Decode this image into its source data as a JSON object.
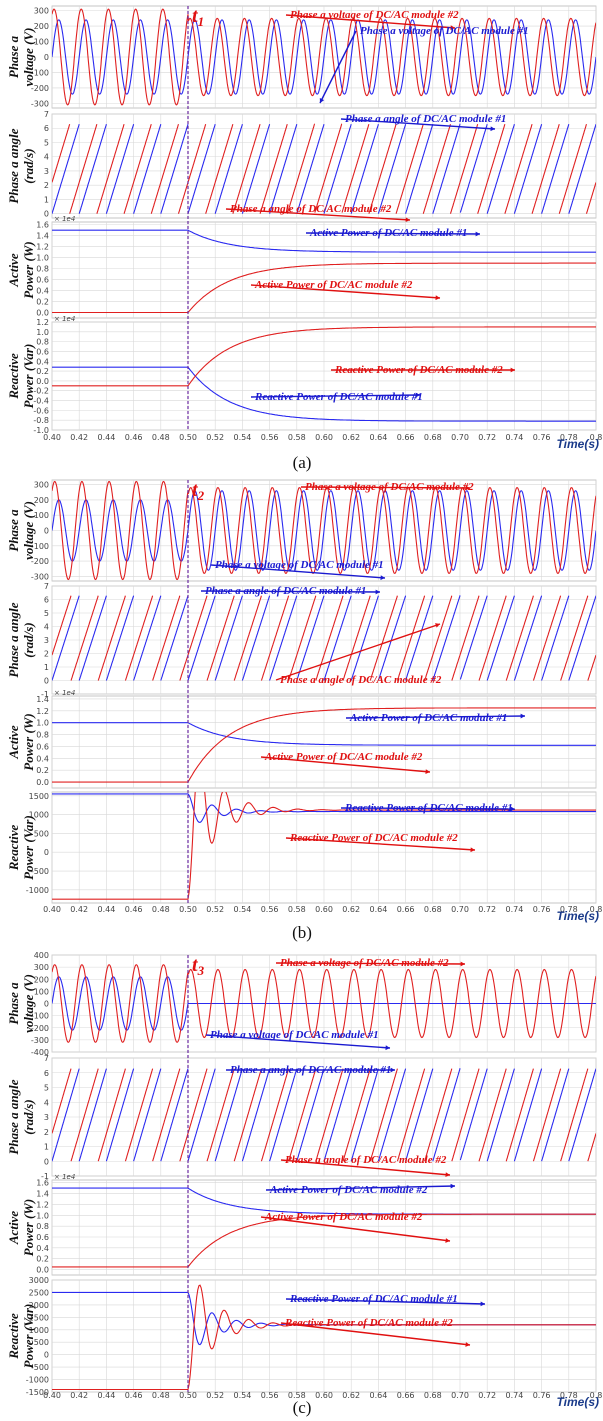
{
  "colors": {
    "module1": "#2a2af0",
    "module2": "#e02020",
    "annotation_red": "#e01010",
    "annotation_blue": "#1a1ad0",
    "grid": "#d8d8d8",
    "event_line": "#6a2aa0"
  },
  "x_axis": {
    "range": [
      0.4,
      0.8
    ],
    "ticks": [
      "0.40",
      "0.42",
      "0.44",
      "0.46",
      "0.48",
      "0.50",
      "0.52",
      "0.54",
      "0.56",
      "0.58",
      "0.60",
      "0.62",
      "0.64",
      "0.66",
      "0.68",
      "0.70",
      "0.72",
      "0.74",
      "0.76",
      "0.78",
      "0.8"
    ],
    "title": "Time(s)"
  },
  "chart_data": [
    {
      "group": "a",
      "caption": "(a)",
      "event_label": "t",
      "event_subscript": "1",
      "event_time": 0.5,
      "panels": [
        {
          "kind": "voltage",
          "type": "line",
          "ylabel_lines": [
            "Phase a",
            "voltage (V)"
          ],
          "yticks": [
            "300",
            "200",
            "100",
            "0",
            "-100",
            "-200",
            "-300"
          ],
          "ylim": [
            -330,
            330
          ],
          "exponent": "",
          "series": [
            {
              "name": "Phase a voltage of DC/AC module #1",
              "amplitude": 240,
              "amplitude_after": 240,
              "freq": 50,
              "phase": 0.0
            },
            {
              "name": "Phase a voltage of DC/AC module #2",
              "amplitude": 310,
              "amplitude_after": 250,
              "freq": 50,
              "phase": 0.35
            }
          ],
          "annotations": [
            {
              "text": "Phase a voltage of DC/AC module #2",
              "color": "module2"
            },
            {
              "text": "Phase a voltage of DC/AC module #1",
              "color": "module1"
            }
          ]
        },
        {
          "kind": "angle",
          "type": "line",
          "ylabel_lines": [
            "Phase a angle",
            "(rad/s)"
          ],
          "yticks": [
            "7",
            "6",
            "5",
            "4",
            "3",
            "2",
            "1",
            "0"
          ],
          "ylim": [
            -0.3,
            7
          ],
          "exponent": "",
          "series": [
            {
              "name": "Phase a angle of DC/AC module #1",
              "freq": 50,
              "phase": 0.0
            },
            {
              "name": "Phase a angle of DC/AC module #2",
              "freq": 50,
              "phase": 0.35
            }
          ],
          "annotations": [
            {
              "text": "Phase a angle of DC/AC module #1",
              "color": "module1"
            },
            {
              "text": "Phase a angle of DC/AC module #2",
              "color": "module2"
            }
          ]
        },
        {
          "kind": "power",
          "type": "line",
          "ylabel_lines": [
            "Active",
            "Power (W)"
          ],
          "yticks": [
            "1.6",
            "1.4",
            "1.2",
            "1.0",
            "0.8",
            "0.6",
            "0.4",
            "0.2",
            "0.0"
          ],
          "ylim": [
            -0.1,
            1.65
          ],
          "exponent": "× 1e4",
          "series": [
            {
              "name": "Active Power of DC/AC module #1",
              "before": 1.5,
              "after": 1.1
            },
            {
              "name": "Active Power of DC/AC module #2",
              "before": 0.0,
              "after": 0.9
            }
          ],
          "annotations": [
            {
              "text": "Active Power of DC/AC module #1",
              "color": "module1"
            },
            {
              "text": "Active Power of DC/AC module #2",
              "color": "module2"
            }
          ]
        },
        {
          "kind": "power",
          "type": "line",
          "ylabel_lines": [
            "Reactive",
            "Power (Var)"
          ],
          "yticks": [
            "1.2",
            "1.0",
            "0.8",
            "0.6",
            "0.4",
            "0.2",
            "0.0",
            "-0.2",
            "-0.4",
            "-0.6",
            "-0.8",
            "-1.0"
          ],
          "ylim": [
            -1.0,
            1.2
          ],
          "exponent": "× 1e4",
          "series": [
            {
              "name": "Reactive Power of DC/AC module #1",
              "before": 0.28,
              "after": -0.82
            },
            {
              "name": "Reactive Power of DC/AC module #2",
              "before": -0.1,
              "after": 1.1
            }
          ],
          "annotations": [
            {
              "text": "Reactive Power of DC/AC module #2",
              "color": "module2"
            },
            {
              "text": "Reactive Power of DC/AC module #1",
              "color": "module1"
            }
          ]
        }
      ]
    },
    {
      "group": "b",
      "caption": "(b)",
      "event_label": "t",
      "event_subscript": "2",
      "event_time": 0.5,
      "panels": [
        {
          "kind": "voltage",
          "type": "line",
          "ylabel_lines": [
            "Phase a",
            "voltage (V)"
          ],
          "yticks": [
            "300",
            "200",
            "100",
            "0",
            "-100",
            "-200",
            "-300"
          ],
          "ylim": [
            -330,
            330
          ],
          "exponent": "",
          "series": [
            {
              "name": "Phase a voltage of DC/AC module #1",
              "amplitude": 200,
              "amplitude_after": 260,
              "freq": 50,
              "phase": 0.0
            },
            {
              "name": "Phase a voltage of DC/AC module #2",
              "amplitude": 320,
              "amplitude_after": 280,
              "freq": 50,
              "phase": 0.3
            }
          ],
          "annotations": [
            {
              "text": "Phase a voltage of DC/AC module #2",
              "color": "module2"
            },
            {
              "text": "Phase a voltage of DC/AC module #1",
              "color": "module1"
            }
          ]
        },
        {
          "kind": "angle",
          "type": "line",
          "ylabel_lines": [
            "Phase a angle",
            "(rad/s)"
          ],
          "yticks": [
            "7",
            "6",
            "5",
            "4",
            "3",
            "2",
            "1",
            "0",
            "-1"
          ],
          "ylim": [
            -1,
            7
          ],
          "exponent": "",
          "series": [
            {
              "name": "Phase a angle of DC/AC module #1",
              "freq": 50,
              "phase": 0.0
            },
            {
              "name": "Phase a angle of DC/AC module #2",
              "freq": 50,
              "phase": 0.3
            }
          ],
          "annotations": [
            {
              "text": "Phase a angle of DC/AC module #1",
              "color": "module1"
            },
            {
              "text": "Phase a angle of DC/AC module #2",
              "color": "module2"
            }
          ]
        },
        {
          "kind": "power",
          "type": "line",
          "ylabel_lines": [
            "Active",
            "Power (W)"
          ],
          "yticks": [
            "1.4",
            "1.2",
            "1.0",
            "0.8",
            "0.6",
            "0.4",
            "0.2",
            "0.0"
          ],
          "ylim": [
            -0.1,
            1.45
          ],
          "exponent": "× 1e4",
          "series": [
            {
              "name": "Active Power of DC/AC module #1",
              "before": 1.0,
              "after": 0.62
            },
            {
              "name": "Active Power of DC/AC module #2",
              "before": 0.0,
              "after": 1.25
            }
          ],
          "annotations": [
            {
              "text": "Active Power of DC/AC module #1",
              "color": "module1"
            },
            {
              "text": "Active Power of DC/AC module #2",
              "color": "module2"
            }
          ]
        },
        {
          "kind": "power_osc",
          "type": "line",
          "ylabel_lines": [
            "Reactive",
            "Power (Var)"
          ],
          "yticks": [
            "1500",
            "1000",
            "500",
            "0",
            "-500",
            "-1000"
          ],
          "ylim": [
            -1350,
            1600
          ],
          "exponent": "",
          "series": [
            {
              "name": "Reactive Power of DC/AC module #1",
              "before": 1550,
              "after": 1080
            },
            {
              "name": "Reactive Power of DC/AC module #2",
              "before": -1250,
              "after": 1120
            }
          ],
          "annotations": [
            {
              "text": "Reactive Power of DC/AC module #1",
              "color": "module1"
            },
            {
              "text": "Reactive Power of DC/AC module #2",
              "color": "module2"
            }
          ]
        }
      ]
    },
    {
      "group": "c",
      "caption": "(c)",
      "event_label": "t",
      "event_subscript": "3",
      "event_time": 0.5,
      "panels": [
        {
          "kind": "voltage",
          "type": "line",
          "ylabel_lines": [
            "Phase a",
            "voltage (V)"
          ],
          "yticks": [
            "400",
            "300",
            "200",
            "100",
            "0",
            "-100",
            "-200",
            "-300",
            "-400"
          ],
          "ylim": [
            -400,
            400
          ],
          "exponent": "",
          "series": [
            {
              "name": "Phase a voltage of DC/AC module #1",
              "amplitude": 220,
              "amplitude_after": 0,
              "freq": 50,
              "phase": 0.0
            },
            {
              "name": "Phase a voltage of DC/AC module #2",
              "amplitude": 320,
              "amplitude_after": 280,
              "freq": 50,
              "phase": 0.3
            }
          ],
          "annotations": [
            {
              "text": "Phase a voltage of DC/AC module #2",
              "color": "module2"
            },
            {
              "text": "Phase a voltage of DC/AC module #1",
              "color": "module1"
            }
          ]
        },
        {
          "kind": "angle",
          "type": "line",
          "ylabel_lines": [
            "Phase a angle",
            "(rad/s)"
          ],
          "yticks": [
            "7",
            "6",
            "5",
            "4",
            "3",
            "2",
            "1",
            "0",
            "-1"
          ],
          "ylim": [
            -1,
            7
          ],
          "exponent": "",
          "series": [
            {
              "name": "Phase a angle of DC/AC module #1",
              "freq": 50,
              "phase": 0.0
            },
            {
              "name": "Phase a angle of DC/AC module #2",
              "freq": 50,
              "phase": 0.3
            }
          ],
          "annotations": [
            {
              "text": "Phase a angle of DC/AC module #1",
              "color": "module1"
            },
            {
              "text": "Phase a angle of DC/AC module #2",
              "color": "module2"
            }
          ]
        },
        {
          "kind": "power",
          "type": "line",
          "ylabel_lines": [
            "Active",
            "Power (W)"
          ],
          "yticks": [
            "1.6",
            "1.4",
            "1.2",
            "1.0",
            "0.8",
            "0.6",
            "0.4",
            "0.2",
            "0.0"
          ],
          "ylim": [
            -0.1,
            1.65
          ],
          "exponent": "× 1e4",
          "series": [
            {
              "name": "Active Power of DC/AC module #2",
              "before": 1.5,
              "after": 1.02
            },
            {
              "name": "Active Power of DC/AC module #2",
              "before": 0.05,
              "after": 1.02
            }
          ],
          "annotations": [
            {
              "text": "Active Power of DC/AC module #2",
              "color": "module1"
            },
            {
              "text": "Active Power of DC/AC module #2",
              "color": "module2"
            }
          ]
        },
        {
          "kind": "power_osc",
          "type": "line",
          "ylabel_lines": [
            "Reactive",
            "Power (Var)"
          ],
          "yticks": [
            "3000",
            "2500",
            "2000",
            "1500",
            "1000",
            "500",
            "0",
            "-500",
            "-1000",
            "-1500"
          ],
          "ylim": [
            -1500,
            3000
          ],
          "exponent": "",
          "series": [
            {
              "name": "Reactive Power of DC/AC module #1",
              "before": 2500,
              "after": 1200
            },
            {
              "name": "Reactive Power of DC/AC module #2",
              "before": -1400,
              "after": 1200
            }
          ],
          "annotations": [
            {
              "text": "Reactive Power of DC/AC module #1",
              "color": "module1"
            },
            {
              "text": "Reactive Power of DC/AC module #2",
              "color": "module2"
            }
          ]
        }
      ]
    }
  ]
}
